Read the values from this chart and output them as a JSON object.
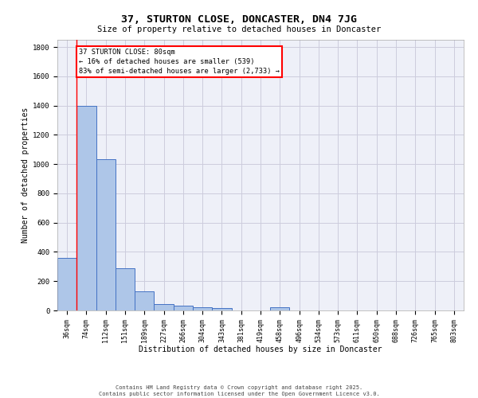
{
  "title": "37, STURTON CLOSE, DONCASTER, DN4 7JG",
  "subtitle": "Size of property relative to detached houses in Doncaster",
  "xlabel": "Distribution of detached houses by size in Doncaster",
  "ylabel": "Number of detached properties",
  "bar_values": [
    360,
    1400,
    1035,
    290,
    130,
    42,
    35,
    22,
    16,
    0,
    0,
    20,
    0,
    0,
    0,
    0,
    0,
    0,
    0,
    0,
    0
  ],
  "categories": [
    "36sqm",
    "74sqm",
    "112sqm",
    "151sqm",
    "189sqm",
    "227sqm",
    "266sqm",
    "304sqm",
    "343sqm",
    "381sqm",
    "419sqm",
    "458sqm",
    "496sqm",
    "534sqm",
    "573sqm",
    "611sqm",
    "650sqm",
    "688sqm",
    "726sqm",
    "765sqm",
    "803sqm"
  ],
  "bar_color": "#aec6e8",
  "bar_edge_color": "#4472c4",
  "ylim": [
    0,
    1850
  ],
  "yticks": [
    0,
    200,
    400,
    600,
    800,
    1000,
    1200,
    1400,
    1600,
    1800
  ],
  "property_line_x": 0.5,
  "annotation_text": "37 STURTON CLOSE: 80sqm\n← 16% of detached houses are smaller (539)\n83% of semi-detached houses are larger (2,733) →",
  "annotation_box_color": "#ff0000",
  "grid_color": "#ccccdd",
  "background_color": "#eef0f8",
  "footer_line1": "Contains HM Land Registry data © Crown copyright and database right 2025.",
  "footer_line2": "Contains public sector information licensed under the Open Government Licence v3.0."
}
